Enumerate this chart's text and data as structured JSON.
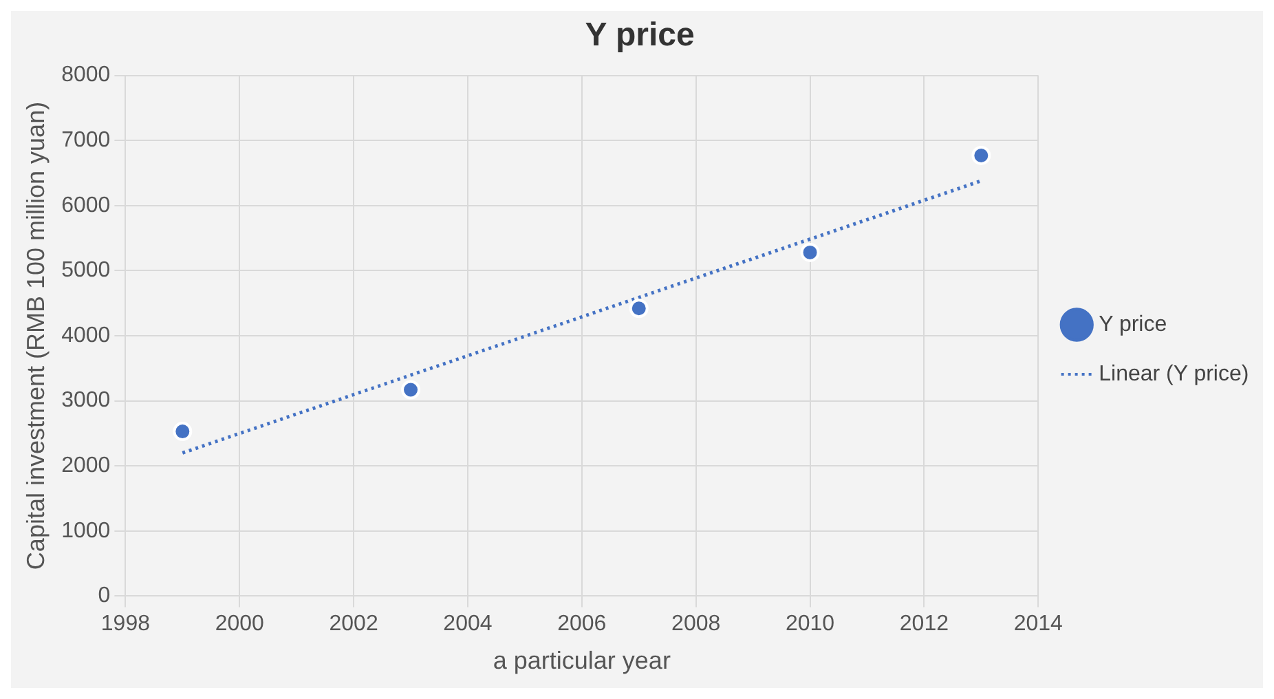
{
  "chart_data": {
    "type": "scatter",
    "title": "Y price",
    "xlabel": "a particular year",
    "ylabel": "Capital investment (RMB 100 million yuan)",
    "x": [
      1999,
      2003,
      2007,
      2010,
      2013
    ],
    "series": [
      {
        "name": "Y price",
        "color": "#4472c4",
        "values": [
          2530,
          3170,
          4420,
          5280,
          6770
        ],
        "marker": "circle"
      },
      {
        "name": "Linear (Y price)",
        "type": "line",
        "color": "#4472c4",
        "x": [
          1999,
          2013
        ],
        "values": [
          2200,
          6380
        ],
        "line_style": "dotted",
        "marker": "none"
      }
    ],
    "xlim": [
      1998,
      2014
    ],
    "xticks": [
      1998,
      2000,
      2002,
      2004,
      2006,
      2008,
      2010,
      2012,
      2014
    ],
    "ylim": [
      0,
      8000
    ],
    "yticks": [
      0,
      1000,
      2000,
      3000,
      4000,
      5000,
      6000,
      7000,
      8000
    ],
    "grid": true,
    "legend": "right"
  }
}
